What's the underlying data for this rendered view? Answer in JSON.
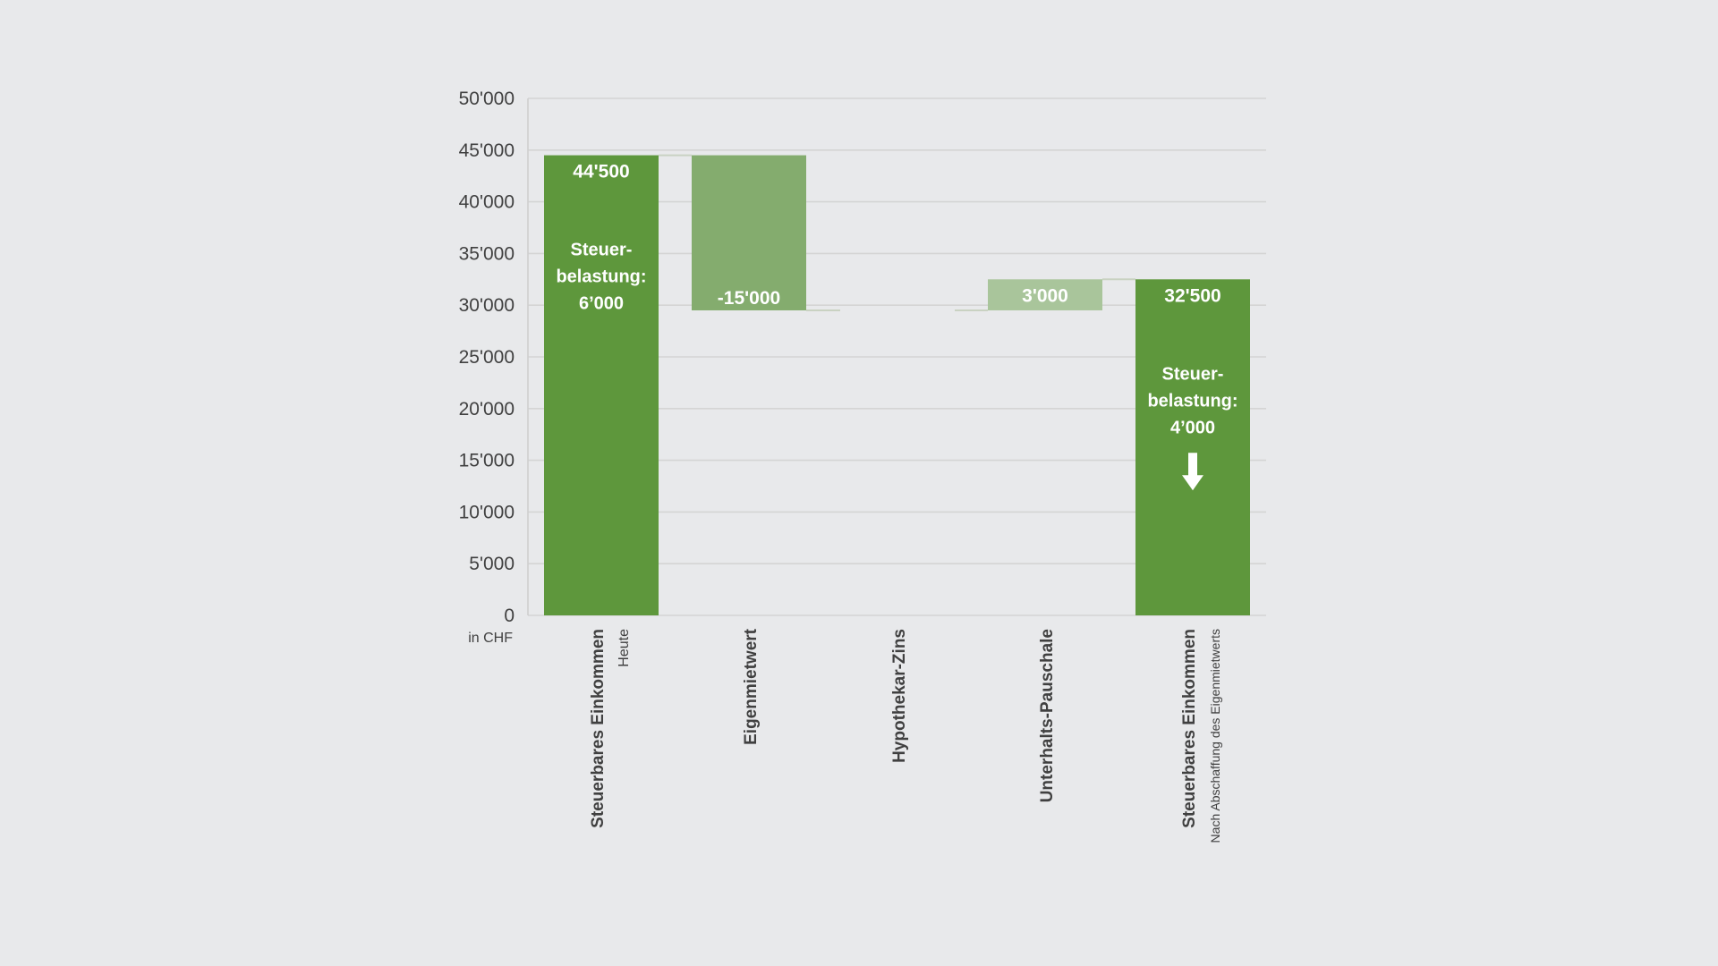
{
  "chart_data": {
    "type": "bar",
    "subtype": "waterfall",
    "unit_label": "in CHF",
    "ylim": [
      0,
      50000
    ],
    "y_ticks": [
      {
        "value": 0,
        "label": "0"
      },
      {
        "value": 5000,
        "label": "5'000"
      },
      {
        "value": 10000,
        "label": "10'000"
      },
      {
        "value": 15000,
        "label": "15'000"
      },
      {
        "value": 20000,
        "label": "20'000"
      },
      {
        "value": 25000,
        "label": "25'000"
      },
      {
        "value": 30000,
        "label": "30'000"
      },
      {
        "value": 35000,
        "label": "35'000"
      },
      {
        "value": 40000,
        "label": "40'000"
      },
      {
        "value": 45000,
        "label": "45'000"
      },
      {
        "value": 50000,
        "label": "50'000"
      }
    ],
    "grid": true,
    "categories": [
      {
        "label": "Steuerbares Einkommen",
        "sublabel": "Heute"
      },
      {
        "label": "Eigenmietwert",
        "sublabel": ""
      },
      {
        "label": "Hypothekar-Zins",
        "sublabel": ""
      },
      {
        "label": "Unterhalts-Pauschale",
        "sublabel": ""
      },
      {
        "label": "Steuerbares Einkommen",
        "sublabel": "Nach Abschaffung des Eigenmietwerts"
      }
    ],
    "bars": [
      {
        "start": 0,
        "end": 44500,
        "value_label": "44'500",
        "color": "#5e973c",
        "note": [
          "Steuer-",
          "belastung:",
          "6’000"
        ],
        "arrow": false
      },
      {
        "start": 29500,
        "end": 44500,
        "value_label": "-15'000",
        "color": "#84ac6e",
        "note": [],
        "arrow": false
      },
      {
        "start": 29500,
        "end": 29500,
        "value_label": "",
        "color": "#9fbf8a",
        "note": [],
        "arrow": false
      },
      {
        "start": 29500,
        "end": 32500,
        "value_label": "3'000",
        "color": "#a9c59b",
        "note": [],
        "arrow": false
      },
      {
        "start": 0,
        "end": 32500,
        "value_label": "32'500",
        "color": "#5e973c",
        "note": [
          "Steuer-",
          "belastung:",
          "4’000"
        ],
        "arrow": true
      }
    ],
    "colors": {
      "axis": "#cfcfcf",
      "grid": "#d4d4d4",
      "background": "#e8e9eb"
    }
  }
}
